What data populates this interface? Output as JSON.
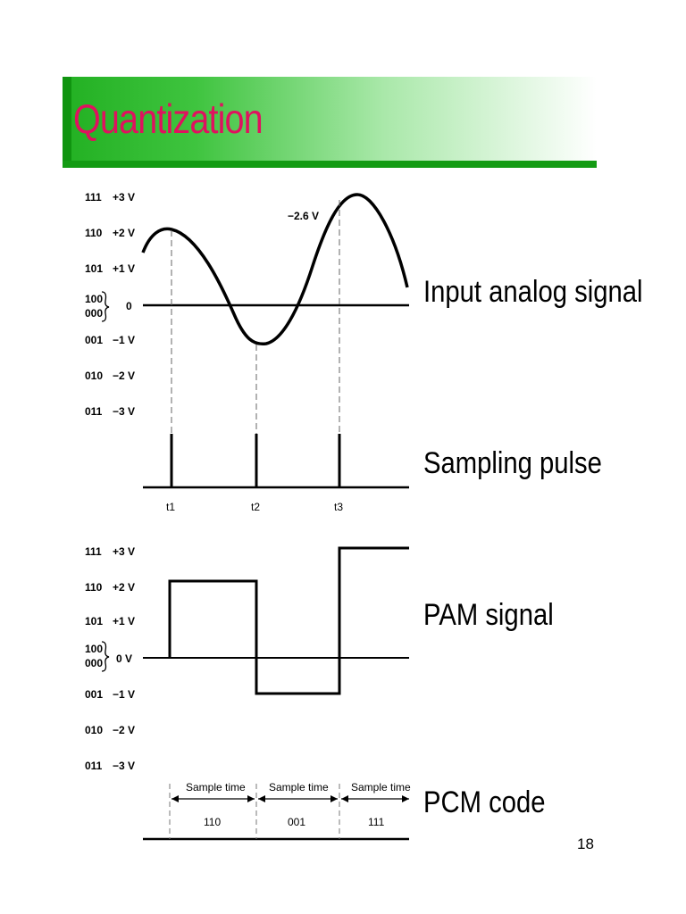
{
  "slide": {
    "title": "Quantization",
    "page_number": "18"
  },
  "labels": {
    "analog": "Input analog signal",
    "sampling": "Sampling pulse",
    "pam": "PAM signal",
    "pcm": "PCM code"
  },
  "levels_top": [
    {
      "code": "111",
      "volt": "+3 V"
    },
    {
      "code": "110",
      "volt": "+2 V"
    },
    {
      "code": "101",
      "volt": "+1 V"
    },
    {
      "code": "100",
      "volt": ""
    },
    {
      "code": "000",
      "volt": "0"
    },
    {
      "code": "001",
      "volt": "−1 V"
    },
    {
      "code": "010",
      "volt": "−2 V"
    },
    {
      "code": "011",
      "volt": "−3 V"
    }
  ],
  "levels_bottom": [
    {
      "code": "111",
      "volt": "+3 V"
    },
    {
      "code": "110",
      "volt": "+2 V"
    },
    {
      "code": "101",
      "volt": "+1 V"
    },
    {
      "code": "100",
      "volt": ""
    },
    {
      "code": "000",
      "volt": "0 V"
    },
    {
      "code": "001",
      "volt": "−1 V"
    },
    {
      "code": "010",
      "volt": "−2 V"
    },
    {
      "code": "011",
      "volt": "−3 V"
    }
  ],
  "peak_annotation": "−2.6 V",
  "time_labels": [
    "t1",
    "t2",
    "t3"
  ],
  "sample_time_label": "Sample time",
  "pcm_codes": [
    "110",
    "001",
    "111"
  ]
}
